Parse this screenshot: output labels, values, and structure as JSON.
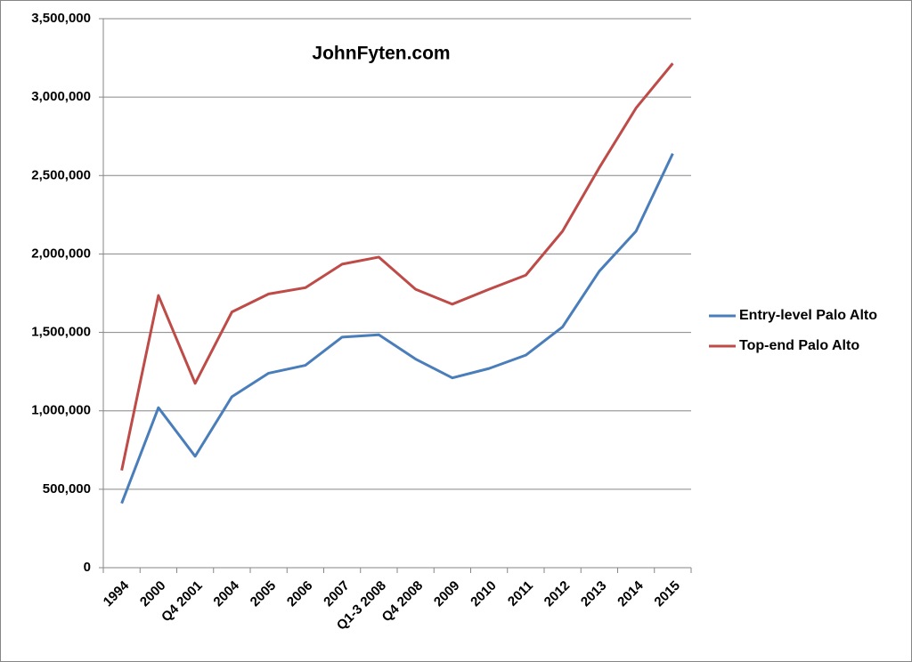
{
  "chart_data": {
    "type": "line",
    "annotation": "JohnFyten.com",
    "categories": [
      "1994",
      "2000",
      "Q4 2001",
      "2004",
      "2005",
      "2006",
      "2007",
      "Q1-3 2008",
      "Q4 2008",
      "2009",
      "2010",
      "2011",
      "2012",
      "2013",
      "2014",
      "2015"
    ],
    "series": [
      {
        "name": "Entry-level Palo Alto",
        "color": "#4a7ebb",
        "values": [
          410000,
          1020000,
          710000,
          1090000,
          1240000,
          1290000,
          1470000,
          1485000,
          1330000,
          1210000,
          1270000,
          1355000,
          1535000,
          1890000,
          2145000,
          2640000
        ]
      },
      {
        "name": "Top-end Palo Alto",
        "color": "#be4b48",
        "values": [
          620000,
          1735000,
          1175000,
          1630000,
          1745000,
          1785000,
          1935000,
          1980000,
          1775000,
          1680000,
          1775000,
          1865000,
          2145000,
          2550000,
          2930000,
          3215000
        ]
      }
    ],
    "ylim": [
      0,
      3500000
    ],
    "yticks": [
      0,
      {
        "value": 500000,
        "label": "500,000"
      },
      {
        "value": 1000000,
        "label": "1,000,000"
      },
      {
        "value": 1500000,
        "label": "1,500,000"
      },
      {
        "value": 2000000,
        "label": "2,000,000"
      },
      {
        "value": 2500000,
        "label": "2,500,000"
      },
      {
        "value": 3000000,
        "label": "3,000,000"
      },
      {
        "value": 3500000,
        "label": "3,500,000"
      }
    ],
    "grid": true,
    "legend": "right"
  }
}
